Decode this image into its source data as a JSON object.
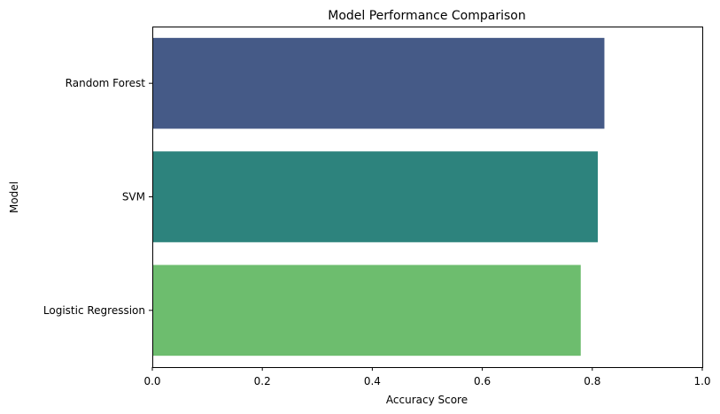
{
  "chart_data": {
    "type": "bar",
    "orientation": "horizontal",
    "title": "Model Performance Comparison",
    "xlabel": "Accuracy Score",
    "ylabel": "Model",
    "xlim": [
      0,
      1.0
    ],
    "xticks": [
      "0.0",
      "0.2",
      "0.4",
      "0.6",
      "0.8",
      "1.0"
    ],
    "categories": [
      "Random Forest",
      "SVM",
      "Logistic Regression"
    ],
    "values": [
      0.822,
      0.81,
      0.779
    ],
    "colors": [
      "#455a87",
      "#2d837d",
      "#6dbd6e"
    ],
    "grid": false,
    "legend": "none"
  }
}
